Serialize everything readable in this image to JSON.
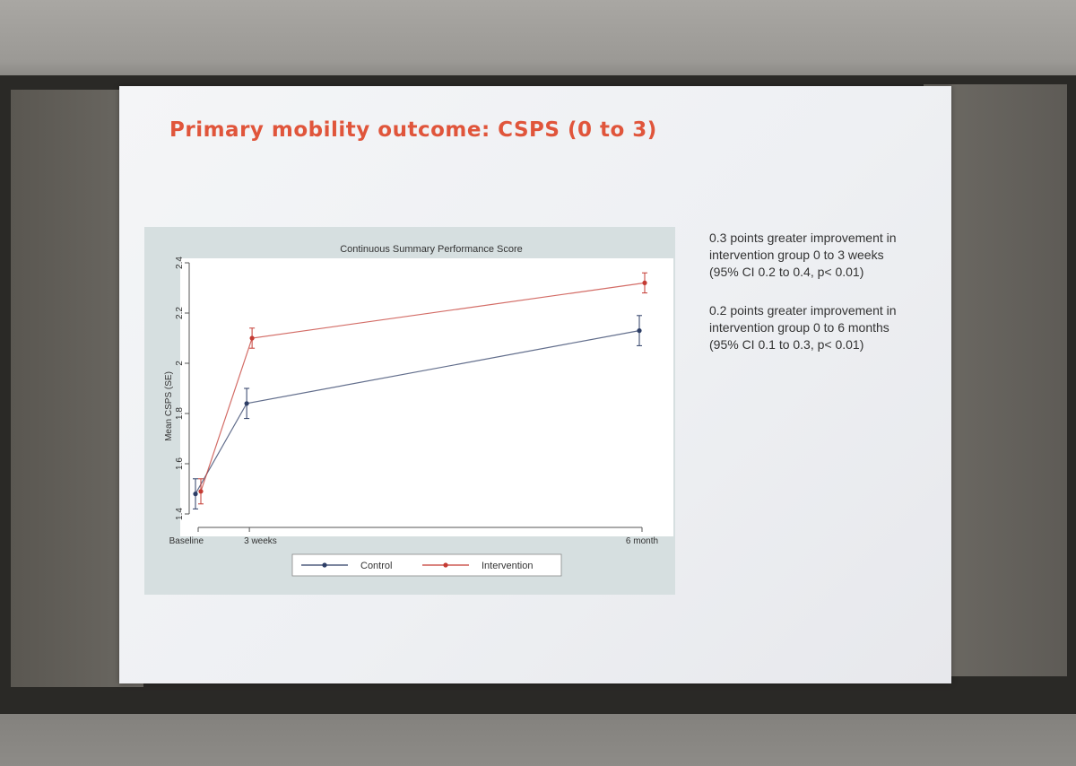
{
  "slide": {
    "title": "Primary mobility outcome: CSPS (0 to 3)",
    "notes": [
      "0.3 points greater improvement in intervention group 0 to 3 weeks (95% CI 0.2 to 0.4, p< 0.01)",
      "0.2 points greater improvement in intervention group 0 to 6 months (95% CI 0.1 to 0.3, p< 0.01)"
    ]
  },
  "colors": {
    "title": "#e0553b",
    "control": "#2d3e66",
    "intervention": "#c43b33"
  },
  "chart_data": {
    "type": "line",
    "title": "Continuous Summary Performance Score",
    "xlabel": "",
    "ylabel": "Mean CSPS (SE)",
    "categories": [
      "Baseline",
      "3 weeks",
      "6 months"
    ],
    "category_labels": [
      "Baseline",
      "3 weeks",
      "6 month"
    ],
    "x_positions_weeks": [
      0,
      3,
      26
    ],
    "ylim": [
      1.4,
      2.4
    ],
    "yticks": [
      "1.4",
      "1.6",
      "1.8",
      "2",
      "2.2",
      "2.4"
    ],
    "grid": false,
    "legend_position": "bottom",
    "series": [
      {
        "name": "Control",
        "values": [
          1.48,
          1.84,
          2.13
        ],
        "se": [
          0.06,
          0.06,
          0.06
        ]
      },
      {
        "name": "Intervention",
        "values": [
          1.49,
          2.1,
          2.32
        ],
        "se": [
          0.05,
          0.04,
          0.04
        ]
      }
    ]
  }
}
